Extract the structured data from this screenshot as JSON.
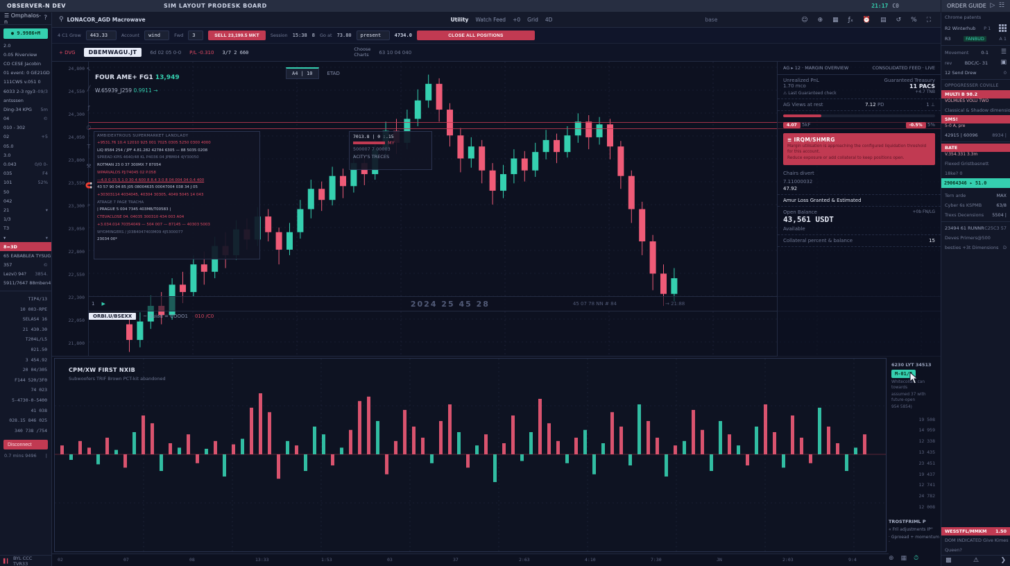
{
  "app": {
    "window_title": "OBSERVER-N DEV",
    "workspace_title": "SIM LAYOUT PRODESK BOARD",
    "clock": "21:17",
    "cpu_badge": "C0",
    "right_header": "ORDER GUIDE"
  },
  "toolbar": {
    "symbol_search": "LONACOR_AGD Macrowave",
    "timeframes": [
      "Utility",
      "Watch Feed",
      "+0",
      "Grid",
      "4D"
    ],
    "base_label": "base",
    "icons": [
      "user",
      "compare",
      "layout-grid",
      "indicators",
      "alerts",
      "templates",
      "replay",
      "percent",
      "fullscreen"
    ]
  },
  "order_bar1": {
    "qty_label": "4 C1 Grow",
    "qty_value": "443.33",
    "type_label": "Account",
    "type_value": "wind",
    "lev_label": "Fwd",
    "lev_value": "3",
    "sell_btn": "SELL 23,199.5 MKT",
    "margin_label": "Session",
    "margin_value": "15:38",
    "split_value": "8",
    "risk_label": "Go at",
    "risk_value": "73.80",
    "preset_label": "Routing",
    "preset_value": "present",
    "px_label": "Tot",
    "px_value": "4734.0",
    "close_btn": "CLOSE ALL POSITIONS"
  },
  "order_bar2": {
    "flag": "+ DVG",
    "symbol": "DBEMWAGU.JT",
    "items": [
      "6d",
      "02 05",
      "0-0"
    ],
    "pl_value": "P/L -0.310",
    "size_value": "3/7 2 660",
    "choose_label": "Choose",
    "choose_sub": "Charts",
    "stats": [
      "63 10",
      "04",
      "040"
    ]
  },
  "chart": {
    "legend1_a": "FOUR AME+ FG1",
    "legend1_b": "13,949",
    "legend2_a": "W.65939_J259",
    "legend2_b": "0.9911",
    "legend2_arrow": "→",
    "chip_main": "A4 | 10",
    "chip_eta": "ETAD",
    "overlay_header": "AMBIDEXTROUS SUPERMARKET LANDLADY",
    "overlay_rows": [
      {
        "s": "r",
        "t": "+9531.76 10.4  12010 925 001  7025 0305 5250 0300 4000"
      },
      {
        "s": "w",
        "t": "LIQ 8584 254 / JPF 4.81.282 42784 6305 — 88 5035 0208"
      },
      {
        "s": "d",
        "t": "SPREAD KPIS 4640/48 KL P4036 04 JPBM04 4JY30050"
      },
      {
        "s": "w",
        "t": "ROTMAN 23 0 37 300MX 7 87054"
      },
      {
        "s": "r",
        "t": "WPARVALDS PJ/74045 02 P.058"
      },
      {
        "s": "u",
        "t": "—4.0 0 15 5 1 0 30 4 600 8 8.4 3 0 8 04 004 04 0.4 400"
      },
      {
        "s": "w",
        "t": "43 57 90 04 85 J05 08004635 00047004 038 34 J 05"
      },
      {
        "s": "r",
        "t": "+30303114 4034045, 40304 30305, 4049 5045 14 043"
      },
      {
        "s": "d",
        "t": "ATRAGE 7 PAGE TRACHA"
      },
      {
        "s": "w",
        "t": "| PRAGUE 5 004 7345 403MB/T00583 |"
      },
      {
        "s": "r",
        "t": "CTEVACLOSE 04. 04035 300310 434 003 A04"
      },
      {
        "s": "r",
        "t": "+3.034.014 70354049 — 504 007 — 87145 — 40303 5003"
      },
      {
        "s": "d",
        "t": "WYOMINGERS / J03B4047403M09 4J5300077"
      },
      {
        "s": "w",
        "t": "23034 00*"
      }
    ],
    "float_box": {
      "line1": "7013.8 | 0 :.15",
      "bar_label": "MY",
      "line2": "500007 7 00003",
      "line3": "ACITY'S TRECES"
    },
    "sublegend": {
      "ind_num": "1",
      "watermark": "2024 25 45 28",
      "wm2": "45 07 78 NN # 84",
      "wm3": "→ 21:88"
    },
    "subrow2": {
      "badge": "ORBI.U/BSEXX",
      "text": "~ Guiad  =  COOO1",
      "red": "010 /C0"
    },
    "price_axis": [
      "24,800",
      "24,550",
      "24,300",
      "24,050",
      "23,800",
      "23,550",
      "23,300",
      "23,050",
      "22,800",
      "22,550",
      "22,300",
      "22,050",
      "21,800"
    ],
    "time_axis": [
      "02",
      "07",
      "08",
      "13:33",
      "1:53",
      "03",
      "37",
      "2:63",
      "4:10",
      "7:30",
      "JN",
      "2:03",
      "9:4"
    ],
    "tools": [
      "↖",
      "╱",
      "ƒ",
      "○",
      "T",
      "⚒",
      "🧲",
      "⌕"
    ]
  },
  "right_panel": {
    "header_left": "AG ▸ 12 · MARGIN OVERVIEW",
    "header_right": "CONSOLIDATED FEED · LIVE",
    "unrealized_label": "Unrealized PnL",
    "unrealized_value": "1.70 mco",
    "warn_label": "⚠ Last Guaranteed check",
    "guaranteed_label": "Guaranteed Treasury",
    "guaranteed_value": "11 PACS",
    "tnb_value": "+4.7 TNB",
    "views_label": "AG Views at rest",
    "views_value": "7.12",
    "views_unit": "PD",
    "views_note": "1 ⊥",
    "chip_left": "4.07",
    "chip_left_note": "5kF",
    "chip_right": "-0.5%",
    "chip_right_note": "5%",
    "alert_title": "≡ IRQM/SHMRG",
    "alert_line1": "Margin utilisation is approaching the configured liquidation threshold for this account.",
    "alert_line2": "Reduce exposure or add collateral to keep positions open.",
    "charges_label": "Chairs divert",
    "precise_value": "7.11000032",
    "precise_value2": "47.92",
    "maxloss_label": "Amur Loss Granted & Estimated",
    "balance_label": "Open Balance",
    "balance_note": "+0b FN/LG",
    "balance_value": "43,561 USDT",
    "available_label": "Available",
    "collateral_label": "Collateral percent & balance",
    "collateral_value": "15"
  },
  "order_guide": {
    "sub": "Chrome patents",
    "r2_label": "R2 Winterhub",
    "r2_value": "P 1",
    "r3_label": "R3",
    "r3_chip": "FANBUD",
    "r3_value": "A 1",
    "movement_label": "Movement",
    "movement_value": "0-1",
    "rev_label": "rev",
    "rev_value": "BDC/C- 31",
    "send_label": "12 Send Drew",
    "send_value": "0",
    "section": "OPPOGRESSER COVILLE",
    "ask1": "MULTI B  98.2",
    "ask1_sub": "VOLMUES VOLU TWO",
    "dim1": "Classical & Shadow dimensions",
    "ask2": "SMS!",
    "ask2_sub": "5-0 A, pre",
    "row_nums": "42915 | 60096",
    "row_nums_v": "8934 |",
    "ask3": "BATE",
    "ask3_sub": "V.354.331  3.3m",
    "dim2": "Flexed Gristbasnett",
    "dim3": "18ke? 0",
    "mark_row": "29064346 ▸ 51.0",
    "kv1_k": "Tern arde",
    "kv1_v": "MAX",
    "kv2_k": "Cyber 6s KSPMB",
    "kv2_v": "63/8",
    "kv3_k": "Trexs Decensions",
    "kv3_v": "5504 |",
    "div_row_l": "23494 61 RUNNR",
    "div_row_r": "C25C3 57",
    "dim4": "Deves Primers@500",
    "dim5": "besties +3t Dimensions",
    "dim5_v": "D",
    "bottom_red": "WESSTFL/MMKM",
    "bottom_red_v": "1.50",
    "bottom_dim1": "DOM INDICATED Give Kimes",
    "bottom_dim2": "Queen?"
  },
  "left_sidebar": {
    "header": "☰ Omphalos-n",
    "header_icon": "?",
    "pill": "● 9.9986+M",
    "items": [
      {
        "l": "2.0",
        "v": ""
      },
      {
        "l": "0.05 Riverview",
        "v": ""
      },
      {
        "l": "CO CESE Jacobin",
        "v": ""
      },
      {
        "l": "01 event: 0 GE21GD",
        "v": ""
      },
      {
        "l": "111CWS v.051 0",
        "v": ""
      },
      {
        "l": "6033 2-3 rgy3",
        "v": "-09/3"
      },
      {
        "l": "antsssen",
        "v": ""
      },
      {
        "l": "Ding-34 KPG",
        "v": "5m"
      },
      {
        "l": "04",
        "v": "©"
      },
      {
        "l": "010 - 302",
        "v": ""
      },
      {
        "l": "02",
        "v": "+5"
      },
      {
        "l": "05.0",
        "v": ""
      },
      {
        "l": "3.0",
        "v": ""
      },
      {
        "l": "0.043",
        "v": "0/0 0-"
      },
      {
        "l": "035",
        "v": "F4"
      },
      {
        "l": "101",
        "v": "52%"
      },
      {
        "l": "50",
        "v": ""
      },
      {
        "l": "042",
        "v": ""
      },
      {
        "l": "21",
        "v": "▾"
      },
      {
        "l": "1/3",
        "v": ""
      },
      {
        "l": "T3",
        "v": ""
      },
      {
        "l": "▾",
        "v": "▾"
      },
      {
        "l": "8=3D",
        "v": "",
        "hl": true
      },
      {
        "l": "65 EABABLEA TYSUGH",
        "v": ""
      },
      {
        "l": "357",
        "v": "©"
      },
      {
        "l": "Lezvi) 94?",
        "v": "3854."
      },
      {
        "l": "5911/7647 88mben4",
        "v": "©"
      }
    ],
    "stats": [
      "TIP4/13",
      "10 003-RPE",
      "SELAS4 16",
      "21 430.30",
      "T204L/L5",
      "021.50",
      "3 454.92",
      "20 04/305",
      "F144 520/3F0",
      "74 023",
      "5-4730-0-5400",
      "41 038",
      "028.15 846 025",
      "340 738 /754"
    ],
    "button": "Disconnect",
    "footer_l": "0.7 mins 9496",
    "footer_r": "|",
    "status": "BYL CCC TVR33"
  },
  "lower_pane": {
    "title": "CPM/XW FIRST NXIB",
    "subtitle": "Subwoofers TRIF Brown PCT-kit abandoned",
    "right_label": "6230 LYT 34513",
    "badge": "M-01/2",
    "note1": "Whitecollars can towards",
    "note2": "assumed 37 with future-open",
    "note3": "954 5854)",
    "scale": [
      "19 508",
      "14 959",
      "12 338",
      "13 435",
      "23 451",
      "19 437",
      "12 741",
      "24 782",
      "12 008"
    ],
    "links_head": "TROSTFRIML P",
    "links": [
      "« Fril adjustments IP°",
      "· Gproead + momentum ·"
    ]
  },
  "chart_data": [
    {
      "type": "candlestick",
      "title": "FOUR AME+ FG1 main price pane",
      "ylim": [
        21600,
        24800
      ],
      "price_lines": [
        24150,
        24080
      ],
      "ohlc": [
        [
          21950,
          22050,
          21650,
          21780
        ],
        [
          21780,
          22080,
          21700,
          21980
        ],
        [
          21980,
          22260,
          21900,
          22150
        ],
        [
          22150,
          22300,
          21950,
          22050
        ],
        [
          22050,
          22450,
          22000,
          22380
        ],
        [
          22380,
          22520,
          22180,
          22300
        ],
        [
          22300,
          22700,
          22250,
          22600
        ],
        [
          22600,
          22740,
          22380,
          22520
        ],
        [
          22520,
          22900,
          22450,
          22800
        ],
        [
          22800,
          22950,
          22560,
          22700
        ],
        [
          22700,
          23080,
          22650,
          22980
        ],
        [
          22980,
          23100,
          22760,
          22870
        ],
        [
          22870,
          23220,
          22800,
          23120
        ],
        [
          23120,
          23200,
          22850,
          22950
        ],
        [
          22950,
          23000,
          22600,
          22760
        ],
        [
          22760,
          23050,
          22700,
          22950
        ],
        [
          22950,
          23300,
          22880,
          23200
        ],
        [
          23200,
          23520,
          23100,
          23420
        ],
        [
          23420,
          23500,
          23180,
          23300
        ],
        [
          23300,
          23660,
          23240,
          23560
        ],
        [
          23560,
          23640,
          23320,
          23450
        ],
        [
          23450,
          23800,
          23380,
          23700
        ],
        [
          23700,
          23780,
          23460,
          23580
        ],
        [
          23580,
          23950,
          23520,
          23850
        ],
        [
          23850,
          24150,
          23780,
          24050
        ],
        [
          24050,
          24180,
          23800,
          23920
        ],
        [
          23920,
          24280,
          23850,
          24180
        ],
        [
          24180,
          24500,
          24100,
          24380
        ],
        [
          24380,
          24660,
          24300,
          24560
        ],
        [
          24560,
          24620,
          24150,
          24280
        ],
        [
          24280,
          24350,
          23880,
          24000
        ],
        [
          24000,
          24080,
          23600,
          23750
        ],
        [
          23750,
          23980,
          23650,
          23880
        ],
        [
          23880,
          23950,
          23480,
          23620
        ],
        [
          23620,
          23700,
          23250,
          23400
        ],
        [
          23400,
          23680,
          23320,
          23580
        ],
        [
          23580,
          23850,
          23480,
          23750
        ],
        [
          23750,
          23830,
          23500,
          23620
        ],
        [
          23620,
          23920,
          23550,
          23820
        ],
        [
          23820,
          24060,
          23740,
          23950
        ],
        [
          23950,
          24020,
          23700,
          23820
        ],
        [
          23820,
          24100,
          23760,
          24000
        ],
        [
          24000,
          24240,
          23920,
          24150
        ],
        [
          24150,
          24220,
          23850,
          23980
        ],
        [
          23980,
          24200,
          23900,
          24120
        ],
        [
          24120,
          24180,
          23740,
          23880
        ],
        [
          23880,
          23940,
          23420,
          23560
        ],
        [
          23560,
          23620,
          23050,
          23200
        ],
        [
          23200,
          23280,
          22700,
          22850
        ],
        [
          22850,
          22920,
          22320,
          22500
        ],
        [
          22500,
          22600,
          22150,
          22280
        ],
        [
          22280,
          22560,
          22200,
          22450
        ]
      ],
      "up_color": "#35d0b0",
      "down_color": "#ef5b77"
    },
    {
      "type": "bar",
      "title": "CPM/XW FIRST NXIB delta pane",
      "baseline": 0,
      "values": [
        8,
        -5,
        12,
        6,
        -9,
        15,
        4,
        -12,
        20,
        35,
        28,
        -15,
        10,
        6,
        18,
        -8,
        5,
        12,
        -20,
        9,
        14,
        42,
        55,
        38,
        -22,
        12,
        8,
        -15,
        25,
        18,
        -10,
        6,
        22,
        48,
        52,
        30,
        -18,
        12,
        40,
        25,
        15,
        -8,
        30,
        45,
        20,
        -12,
        8,
        18,
        -25,
        10,
        35,
        -6,
        20,
        50,
        28,
        12,
        -8,
        15,
        22,
        -18,
        10,
        38,
        25,
        -10,
        45,
        30,
        15,
        -20,
        8,
        12,
        40,
        22,
        -15,
        30,
        18,
        8,
        -10,
        25,
        45,
        20,
        -12,
        35,
        15,
        -8,
        42,
        25,
        10,
        -15,
        6,
        18
      ],
      "colors": "rgrrgrgrgrrgrgrrgrgrgrrrrgrgggrgrrrgrrrrrgrrgrgrgrrggrrrgrgggrrggrrgrgrrggrgrgrrgrrrgrrggr"
    }
  ]
}
